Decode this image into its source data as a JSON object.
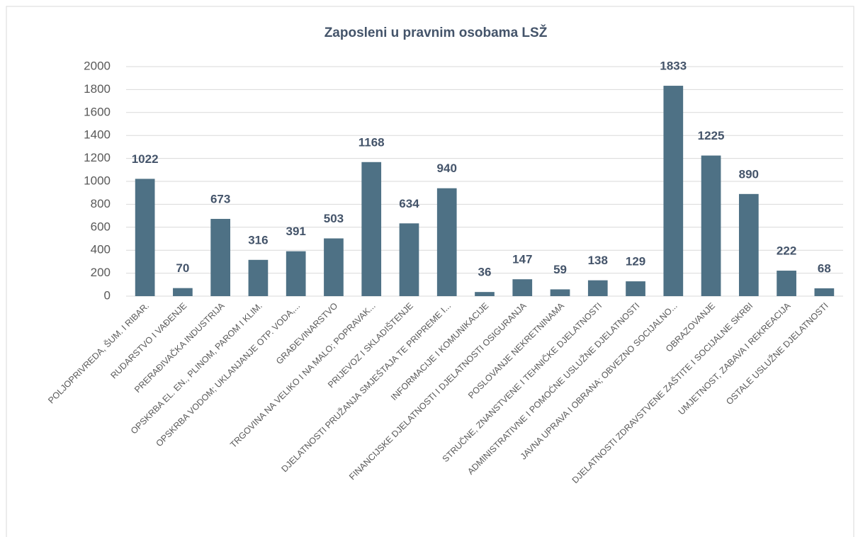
{
  "chart_data": {
    "type": "bar",
    "title": "Zaposleni u pravnim osobama LSŽ",
    "categories": [
      "POLJOPRIVREDA, ŠUM. I RIBAR.",
      "RUDARSTVO I VAĐENJE",
      "PRERAĐIVAČKA INDUSTRIJA",
      "OPSKRBA EL. EN., PLINOM, PAROM I KLIM.",
      "OPSKRBA VODOM; UKLANJANJE OTP. VODA,...",
      "GRAĐEVINARSTVO",
      "TRGOVINA NA VELIKO I NA MALO; POPRAVAK...",
      "PRIJEVOZ I SKLADIŠTENJE",
      "DJELATNOSTI PRUŽANJA SMJEŠTAJA TE PRIPREME I...",
      "INFORMACIJE I KOMUNIKACIJE",
      "FINANCIJSKE DJELATNOSTI I DJELATNOSTI OSIGURANJA",
      "POSLOVANJE NEKRETNINAMA",
      "STRUČNE, ZNANSTVENE I TEHNIČKE DJELATNOSTI",
      "ADMINISTRATIVNE I POMOĆNE USLUŽNE DJELATNOSTI",
      "JAVNA UPRAVA I OBRANA; OBVEZNO SOCIJALNO...",
      "OBRAZOVANJE",
      "DJELATNOSTI ZDRAVSTVENE ZAŠTITE I SOCIJALNE SKRBI",
      "UMJETNOST, ZABAVA I REKREACIJA",
      "OSTALE USLUŽNE DJELATNOSTI"
    ],
    "values": [
      1022,
      70,
      673,
      316,
      391,
      503,
      1168,
      634,
      940,
      36,
      147,
      59,
      138,
      129,
      1833,
      1225,
      890,
      222,
      68
    ],
    "color": "#4e7185",
    "ylim": [
      0,
      2000
    ],
    "yticks": [
      0,
      200,
      400,
      600,
      800,
      1000,
      1200,
      1400,
      1600,
      1800,
      2000
    ],
    "grid": true
  }
}
